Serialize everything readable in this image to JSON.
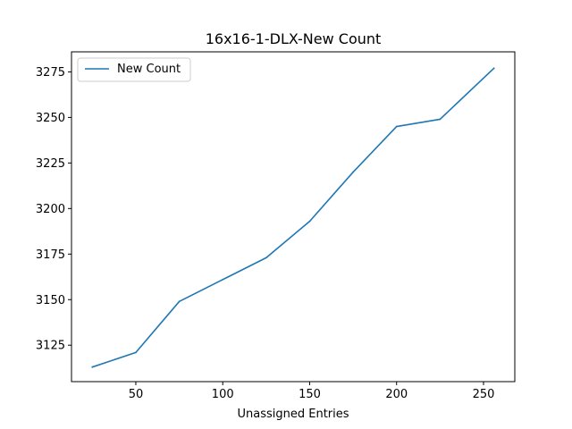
{
  "chart_data": {
    "type": "line",
    "title": "16x16-1-DLX-New Count",
    "xlabel": "Unassigned Entries",
    "ylabel": "",
    "xlim": [
      13,
      268
    ],
    "ylim": [
      3105,
      3286
    ],
    "x_ticks": [
      50,
      100,
      150,
      200,
      250
    ],
    "y_ticks": [
      3125,
      3150,
      3175,
      3200,
      3225,
      3250,
      3275
    ],
    "grid": false,
    "legend_position": "top-left",
    "series": [
      {
        "name": "New Count",
        "color": "#1f77b4",
        "x": [
          25,
          50,
          75,
          100,
          125,
          150,
          175,
          200,
          225,
          256
        ],
        "y": [
          3113,
          3121,
          3149,
          3161,
          3173,
          3193,
          3220,
          3245,
          3249,
          3277
        ]
      }
    ]
  }
}
